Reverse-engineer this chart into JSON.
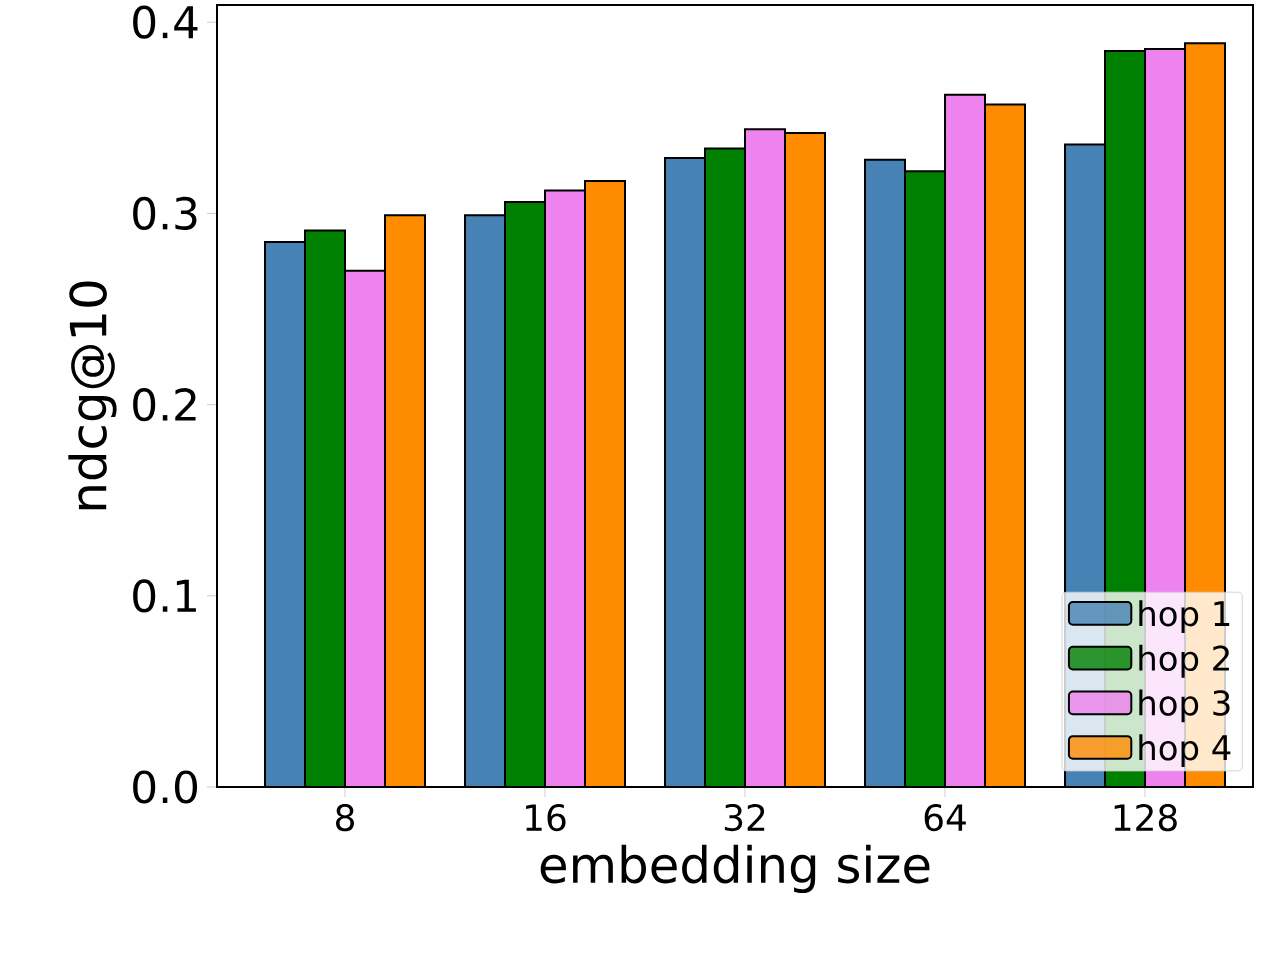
{
  "chart_data": {
    "type": "bar",
    "xlabel": "embedding size",
    "ylabel": "ndcg@10",
    "categories": [
      "8",
      "16",
      "32",
      "64",
      "128"
    ],
    "series": [
      {
        "name": "hop 1",
        "color": "#4682b4",
        "values": [
          0.285,
          0.299,
          0.329,
          0.328,
          0.336
        ]
      },
      {
        "name": "hop 2",
        "color": "#008000",
        "values": [
          0.291,
          0.306,
          0.334,
          0.322,
          0.385
        ]
      },
      {
        "name": "hop 3",
        "color": "#ee82ee",
        "values": [
          0.27,
          0.312,
          0.344,
          0.362,
          0.386
        ]
      },
      {
        "name": "hop 4",
        "color": "#ff8c00",
        "values": [
          0.299,
          0.317,
          0.342,
          0.357,
          0.389
        ]
      }
    ],
    "ylim": [
      0,
      0.409
    ],
    "yticks": [
      {
        "value": 0,
        "label": "0.0"
      },
      0.1,
      0.2,
      0.3,
      0.4
    ],
    "legend": "bottom right",
    "grid": false
  }
}
